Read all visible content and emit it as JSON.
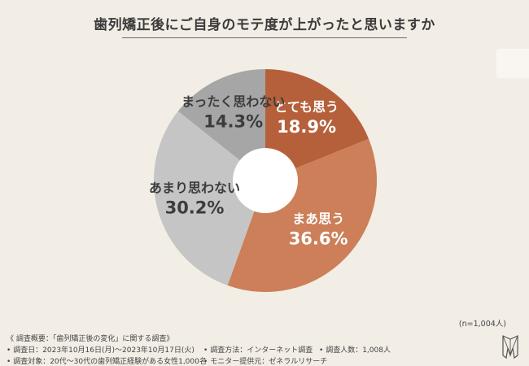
{
  "chart_data": {
    "type": "pie",
    "title": "歯列矯正後にご自身のモテ度が上がったと思いますか",
    "categories": [
      "とても思う",
      "まあ思う",
      "あまり思わない",
      "まったく思わない"
    ],
    "values": [
      18.9,
      36.6,
      30.2,
      14.3
    ],
    "value_labels": [
      "18.9%",
      "36.6%",
      "30.2%",
      "14.3%"
    ],
    "colors": [
      "#b5603a",
      "#cc7f58",
      "#c5c5c5",
      "#a6a6a6"
    ],
    "donut": true,
    "start_angle": "12 o'clock",
    "direction": "clockwise",
    "sample_size": "(n=1,004人)"
  },
  "survey": {
    "overview": "《 調査概要：「歯列矯正後の変化」に関する調査》",
    "date": "調査日：2023年10月16日(月)〜2023年10月17日(火)",
    "method": "調査方法：インターネット調査",
    "count": "調査人数：1,008人",
    "target": "調査対象：20代〜30代の歯列矯正経験がある女性1,000名",
    "provider": "モニター提供元：ゼネラルリサーチ"
  },
  "bullet": "•",
  "logo_icon": "tooth-logo-icon"
}
